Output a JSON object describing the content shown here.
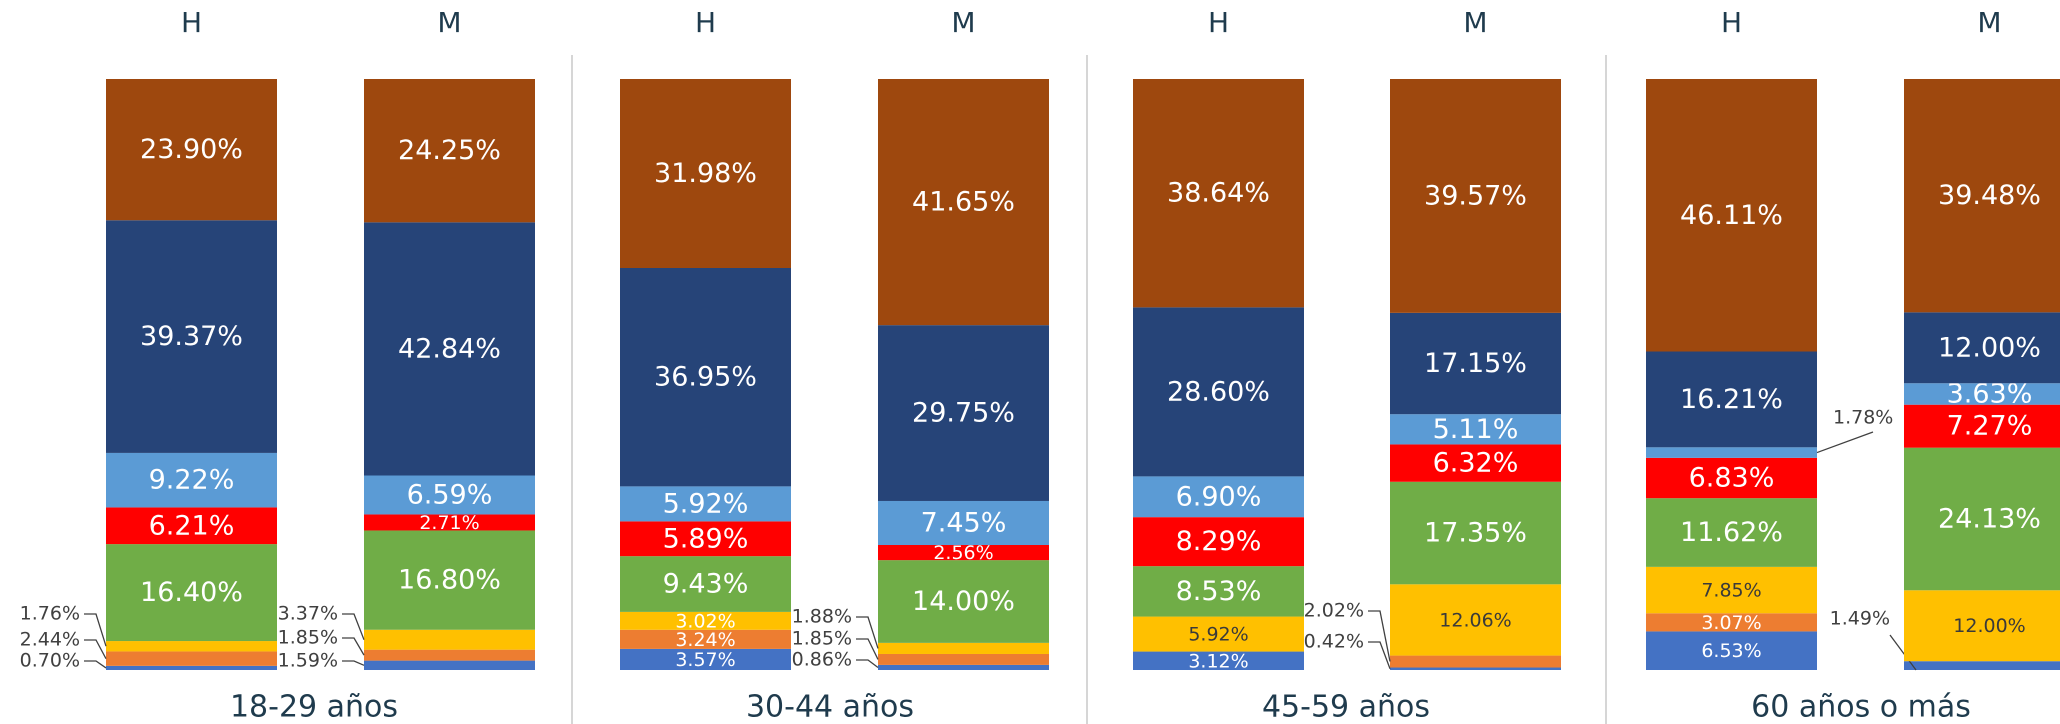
{
  "chart_data": {
    "type": "bar",
    "stacked": true,
    "groups": [
      "18-29 años",
      "30-44 años",
      "45-59 años",
      "60 años o más"
    ],
    "categories": [
      "H",
      "M",
      "H",
      "M",
      "H",
      "M",
      "H",
      "M"
    ],
    "ylim": [
      0,
      100
    ],
    "series": [
      {
        "color": "#4472c4",
        "values": [
          0.7,
          1.59,
          3.57,
          0.86,
          3.12,
          0.42,
          6.53,
          1.49
        ],
        "value_labels": [
          "0.70%",
          "1.59%",
          "3.57%",
          "0.86%",
          "3.12%",
          "0.42%",
          "6.53%",
          "1.49%"
        ]
      },
      {
        "color": "#ed7d31",
        "values": [
          2.44,
          1.85,
          3.24,
          1.85,
          0,
          2.02,
          3.07,
          0
        ],
        "value_labels": [
          "2.44%",
          "1.85%",
          "3.24%",
          "1.85%",
          null,
          "2.02%",
          "3.07%",
          null
        ]
      },
      {
        "color": "#ffc000",
        "values": [
          1.76,
          3.37,
          3.02,
          1.88,
          5.92,
          12.06,
          7.85,
          12.0
        ],
        "value_labels": [
          "1.76%",
          "3.37%",
          "3.02%",
          "1.88%",
          "5.92%",
          "12.06%",
          "7.85%",
          "12.00%"
        ]
      },
      {
        "color": "#70ad47",
        "values": [
          16.4,
          16.8,
          9.43,
          14.0,
          8.53,
          17.35,
          11.62,
          24.13
        ],
        "value_labels": [
          "16.40%",
          "16.80%",
          "9.43%",
          "14.00%",
          "8.53%",
          "17.35%",
          "11.62%",
          "24.13%"
        ]
      },
      {
        "color": "#ff0000",
        "values": [
          6.21,
          2.71,
          5.89,
          2.56,
          8.29,
          6.32,
          6.83,
          7.27
        ],
        "value_labels": [
          "6.21%",
          "2.71%",
          "5.89%",
          "2.56%",
          "8.29%",
          "6.32%",
          "6.83%",
          "7.27%"
        ]
      },
      {
        "color": "#5b9bd5",
        "values": [
          9.22,
          6.59,
          5.92,
          7.45,
          6.9,
          5.11,
          1.78,
          3.63
        ],
        "value_labels": [
          "9.22%",
          "6.59%",
          "5.92%",
          "7.45%",
          "6.90%",
          "5.11%",
          "1.78%",
          "3.63%"
        ]
      },
      {
        "color": "#264478",
        "values": [
          39.37,
          42.84,
          36.95,
          29.75,
          28.6,
          17.15,
          16.21,
          12.0
        ],
        "value_labels": [
          "39.37%",
          "42.84%",
          "36.95%",
          "29.75%",
          "28.60%",
          "17.15%",
          "16.21%",
          "12.00%"
        ]
      },
      {
        "color": "#9e480e",
        "values": [
          23.9,
          24.25,
          31.98,
          41.65,
          38.64,
          39.57,
          46.11,
          39.48
        ],
        "value_labels": [
          "23.90%",
          "24.25%",
          "31.98%",
          "41.65%",
          "38.64%",
          "39.57%",
          "46.11%",
          "39.48%"
        ]
      }
    ]
  }
}
